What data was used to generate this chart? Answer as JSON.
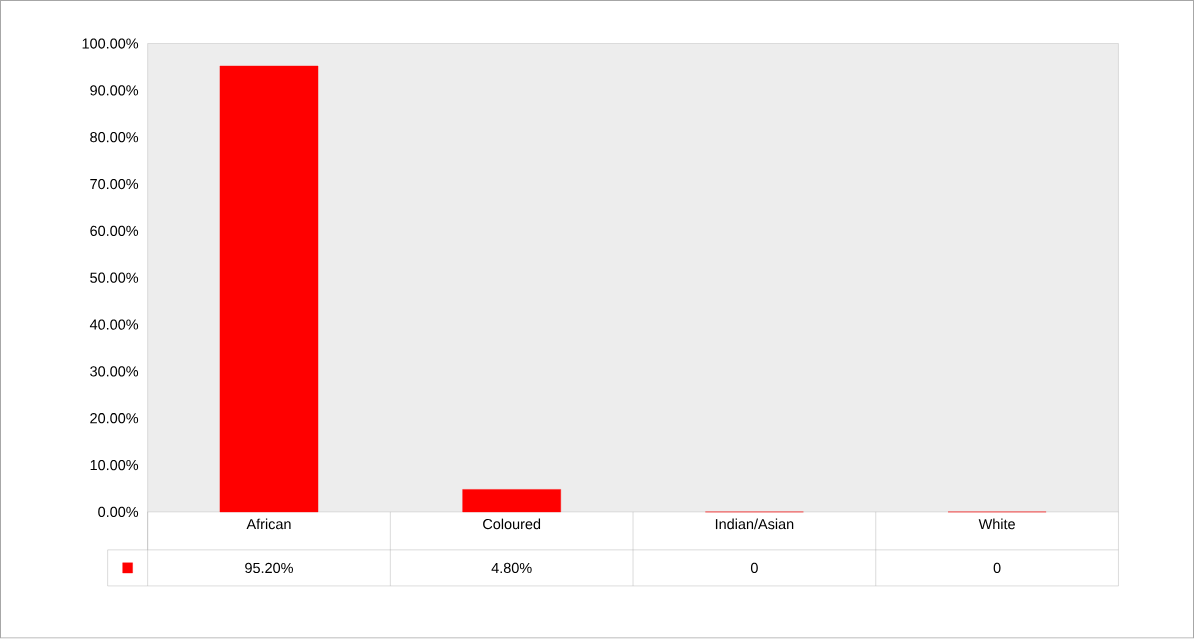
{
  "chart_data": {
    "type": "bar",
    "categories": [
      "African",
      "Coloured",
      "Indian/Asian",
      "White"
    ],
    "values": [
      95.2,
      4.8,
      0,
      0
    ],
    "value_labels": [
      "95.20%",
      "4.80%",
      "0",
      "0"
    ],
    "color": "#ff0000",
    "ylim": [
      0,
      100
    ],
    "yticks": [
      {
        "value": 0,
        "label": "0.00%"
      },
      {
        "value": 10,
        "label": "10.00%"
      },
      {
        "value": 20,
        "label": "20.00%"
      },
      {
        "value": 30,
        "label": "30.00%"
      },
      {
        "value": 40,
        "label": "40.00%"
      },
      {
        "value": 50,
        "label": "50.00%"
      },
      {
        "value": 60,
        "label": "60.00%"
      },
      {
        "value": 70,
        "label": "70.00%"
      },
      {
        "value": 80,
        "label": "80.00%"
      },
      {
        "value": 90,
        "label": "90.00%"
      },
      {
        "value": 100,
        "label": "100.00%"
      }
    ]
  }
}
